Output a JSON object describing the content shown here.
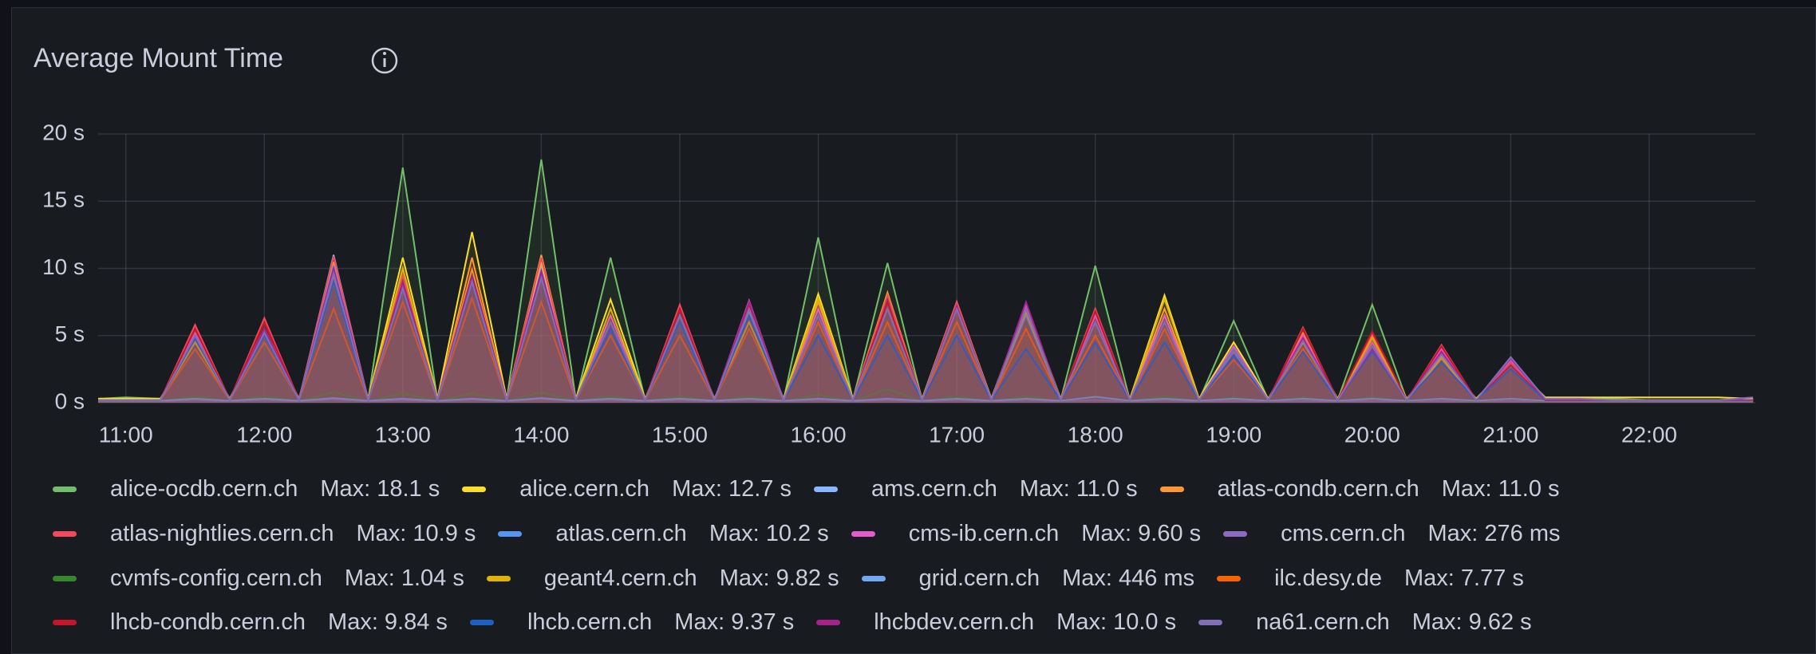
{
  "chart_data": {
    "type": "line",
    "title": "Average Mount Time",
    "x": [
      "10:48",
      "11:00",
      "11:15",
      "11:30",
      "11:45",
      "12:00",
      "12:15",
      "12:30",
      "12:45",
      "13:00",
      "13:15",
      "13:30",
      "13:45",
      "14:00",
      "14:15",
      "14:30",
      "14:45",
      "15:00",
      "15:15",
      "15:30",
      "15:45",
      "16:00",
      "16:15",
      "16:30",
      "16:45",
      "17:00",
      "17:15",
      "17:30",
      "17:45",
      "18:00",
      "18:15",
      "18:30",
      "18:45",
      "19:00",
      "19:15",
      "19:30",
      "19:45",
      "20:00",
      "20:15",
      "20:30",
      "20:45",
      "21:00",
      "21:15",
      "21:30",
      "21:45",
      "22:00",
      "22:15",
      "22:30",
      "22:45"
    ],
    "xlim": [
      "10:48",
      "22:46"
    ],
    "xticks": [
      "11:00",
      "12:00",
      "13:00",
      "14:00",
      "15:00",
      "16:00",
      "17:00",
      "18:00",
      "19:00",
      "20:00",
      "21:00",
      "22:00"
    ],
    "ylim": [
      0,
      20
    ],
    "yticks": [
      {
        "value": 0,
        "label": "0 s"
      },
      {
        "value": 5,
        "label": "5 s"
      },
      {
        "value": 10,
        "label": "10 s"
      },
      {
        "value": 15,
        "label": "15 s"
      },
      {
        "value": 20,
        "label": "20 s"
      }
    ],
    "grid": true,
    "series": [
      {
        "name": "alice-ocdb.cern.ch",
        "legend_value": "Max: 18.1 s",
        "color": "#73bf69",
        "values": [
          0.3,
          0.4,
          0.3,
          4.5,
          0.2,
          5.0,
          0.2,
          9.5,
          0.2,
          17.5,
          0.2,
          9.0,
          0.2,
          18.1,
          0.2,
          10.8,
          0.2,
          6.5,
          0.2,
          6.8,
          0.2,
          12.3,
          0.2,
          10.4,
          0.2,
          7.2,
          0.2,
          6.8,
          0.2,
          10.2,
          0.2,
          6.5,
          0.2,
          6.1,
          0.2,
          4.8,
          0.2,
          7.3,
          0.2,
          3.8,
          0.2,
          3.0,
          0.3,
          0.3,
          0.3,
          0.2,
          0.2,
          0.2,
          0.2
        ]
      },
      {
        "name": "alice.cern.ch",
        "legend_value": "Max: 12.7 s",
        "color": "#fade2a",
        "values": [
          0.3,
          0.3,
          0.3,
          4.8,
          0.3,
          5.5,
          0.3,
          9.8,
          0.3,
          10.8,
          0.3,
          12.7,
          0.3,
          10.5,
          0.3,
          7.7,
          0.3,
          6.5,
          0.3,
          6.5,
          0.3,
          8.1,
          0.3,
          7.5,
          0.3,
          7.5,
          0.3,
          7.3,
          0.3,
          6.5,
          0.3,
          8.0,
          0.3,
          4.5,
          0.3,
          5.0,
          0.3,
          5.0,
          0.3,
          3.5,
          0.3,
          3.0,
          0.4,
          0.4,
          0.4,
          0.4,
          0.4,
          0.4,
          0.3
        ]
      },
      {
        "name": "ams.cern.ch",
        "legend_value": "Max: 11.0 s",
        "color": "#8ab8ff",
        "values": [
          0.2,
          0.2,
          0.2,
          5.0,
          0.2,
          5.5,
          0.2,
          11.0,
          0.2,
          9.0,
          0.2,
          9.5,
          0.2,
          10.0,
          0.2,
          6.0,
          0.2,
          6.5,
          0.2,
          7.0,
          0.2,
          7.0,
          0.2,
          7.5,
          0.2,
          7.0,
          0.2,
          7.0,
          0.2,
          6.0,
          0.2,
          6.5,
          0.2,
          4.0,
          0.2,
          5.0,
          0.2,
          4.5,
          0.2,
          3.8,
          0.2,
          3.0,
          0.2,
          0.2,
          0.2,
          0.2,
          0.2,
          0.2,
          0.2
        ]
      },
      {
        "name": "atlas-condb.cern.ch",
        "legend_value": "Max: 11.0 s",
        "color": "#ff9830",
        "values": [
          0.2,
          0.2,
          0.2,
          5.5,
          0.2,
          6.0,
          0.2,
          10.5,
          0.2,
          10.0,
          0.2,
          10.8,
          0.2,
          11.0,
          0.2,
          6.5,
          0.2,
          7.0,
          0.2,
          7.2,
          0.2,
          7.5,
          0.2,
          8.2,
          0.2,
          7.5,
          0.2,
          7.0,
          0.2,
          6.8,
          0.2,
          7.0,
          0.2,
          4.2,
          0.2,
          5.2,
          0.2,
          5.0,
          0.2,
          4.0,
          0.2,
          3.0,
          0.2,
          0.2,
          0.2,
          0.2,
          0.2,
          0.2,
          0.2
        ]
      },
      {
        "name": "atlas-nightlies.cern.ch",
        "legend_value": "Max: 10.9 s",
        "color": "#f2495c",
        "values": [
          0.2,
          0.2,
          0.2,
          5.8,
          0.2,
          6.3,
          0.2,
          10.9,
          0.2,
          9.5,
          0.2,
          10.0,
          0.2,
          10.8,
          0.2,
          6.5,
          0.2,
          7.3,
          0.2,
          7.5,
          0.2,
          7.0,
          0.2,
          8.0,
          0.2,
          7.5,
          0.2,
          7.4,
          0.2,
          7.0,
          0.2,
          6.5,
          0.2,
          4.0,
          0.2,
          5.6,
          0.2,
          5.2,
          0.2,
          4.3,
          0.2,
          3.0,
          0.2,
          0.2,
          0.2,
          0.2,
          0.2,
          0.2,
          0.2
        ]
      },
      {
        "name": "atlas.cern.ch",
        "legend_value": "Max: 10.2 s",
        "color": "#5794f2",
        "values": [
          0.2,
          0.2,
          0.2,
          5.0,
          0.2,
          5.3,
          0.2,
          10.2,
          0.2,
          9.0,
          0.2,
          9.5,
          0.2,
          9.5,
          0.2,
          6.0,
          0.2,
          6.5,
          0.2,
          7.0,
          0.2,
          6.5,
          0.2,
          7.0,
          0.2,
          7.0,
          0.2,
          6.5,
          0.2,
          6.0,
          0.2,
          6.0,
          0.2,
          3.8,
          0.2,
          5.0,
          0.2,
          4.5,
          0.2,
          3.8,
          0.2,
          2.8,
          0.2,
          0.2,
          0.2,
          0.2,
          0.2,
          0.2,
          0.2
        ]
      },
      {
        "name": "cms-ib.cern.ch",
        "legend_value": "Max: 9.60 s",
        "color": "#e05ccf",
        "values": [
          0.2,
          0.2,
          0.2,
          5.2,
          0.2,
          5.5,
          0.2,
          9.6,
          0.2,
          9.0,
          0.2,
          9.0,
          0.2,
          9.5,
          0.2,
          6.5,
          0.2,
          7.0,
          0.2,
          7.6,
          0.2,
          7.0,
          0.2,
          7.5,
          0.2,
          7.0,
          0.2,
          7.3,
          0.2,
          6.5,
          0.2,
          6.5,
          0.2,
          4.2,
          0.2,
          5.0,
          0.2,
          4.5,
          0.2,
          4.0,
          0.2,
          3.2,
          0.2,
          0.2,
          0.2,
          0.2,
          0.2,
          0.2,
          0.2
        ]
      },
      {
        "name": "cms.cern.ch",
        "legend_value": "Max: 276 ms",
        "color": "#8f6ac4",
        "values": [
          0.1,
          0.1,
          0.1,
          0.2,
          0.1,
          0.2,
          0.1,
          0.25,
          0.1,
          0.2,
          0.1,
          0.22,
          0.1,
          0.276,
          0.1,
          0.2,
          0.1,
          0.2,
          0.1,
          0.2,
          0.1,
          0.2,
          0.1,
          0.2,
          0.1,
          0.2,
          0.1,
          0.2,
          0.1,
          0.2,
          0.1,
          0.2,
          0.1,
          0.15,
          0.1,
          0.15,
          0.1,
          0.15,
          0.1,
          0.15,
          0.1,
          0.15,
          0.1,
          0.1,
          0.1,
          0.1,
          0.1,
          0.1,
          0.1
        ]
      },
      {
        "name": "cvmfs-config.cern.ch",
        "legend_value": "Max: 1.04 s",
        "color": "#37872d",
        "values": [
          0.1,
          0.1,
          0.1,
          0.5,
          0.1,
          0.5,
          0.1,
          0.8,
          0.1,
          0.7,
          0.1,
          0.7,
          0.1,
          0.8,
          0.1,
          0.5,
          0.1,
          0.5,
          0.1,
          0.5,
          0.1,
          0.6,
          0.1,
          1.04,
          0.1,
          0.5,
          0.1,
          0.5,
          0.1,
          0.5,
          0.1,
          0.5,
          0.1,
          0.4,
          0.1,
          0.4,
          0.1,
          0.4,
          0.1,
          0.3,
          0.1,
          0.3,
          0.1,
          0.1,
          0.1,
          0.1,
          0.1,
          0.1,
          0.1
        ]
      },
      {
        "name": "geant4.cern.ch",
        "legend_value": "Max: 9.82 s",
        "color": "#e0b400",
        "values": [
          0.2,
          0.2,
          0.2,
          4.5,
          0.2,
          5.0,
          0.2,
          9.0,
          0.2,
          10.0,
          0.2,
          9.82,
          0.2,
          9.5,
          0.2,
          7.0,
          0.2,
          6.0,
          0.2,
          6.0,
          0.2,
          7.8,
          0.2,
          7.0,
          0.2,
          7.0,
          0.2,
          6.8,
          0.2,
          6.0,
          0.2,
          7.7,
          0.2,
          4.0,
          0.2,
          4.5,
          0.2,
          4.8,
          0.2,
          3.3,
          0.2,
          2.8,
          0.2,
          0.2,
          0.2,
          0.2,
          0.2,
          0.2,
          0.2
        ]
      },
      {
        "name": "grid.cern.ch",
        "legend_value": "Max: 446 ms",
        "color": "#73a7f2",
        "values": [
          0.15,
          0.15,
          0.15,
          0.3,
          0.15,
          0.3,
          0.15,
          0.35,
          0.15,
          0.3,
          0.15,
          0.3,
          0.15,
          0.35,
          0.15,
          0.3,
          0.15,
          0.3,
          0.15,
          0.3,
          0.15,
          0.3,
          0.15,
          0.3,
          0.15,
          0.3,
          0.15,
          0.3,
          0.15,
          0.446,
          0.15,
          0.3,
          0.15,
          0.3,
          0.15,
          0.3,
          0.15,
          0.3,
          0.15,
          0.3,
          0.15,
          0.3,
          0.15,
          0.15,
          0.15,
          0.15,
          0.15,
          0.15,
          0.15
        ]
      },
      {
        "name": "ilc.desy.de",
        "legend_value": "Max: 7.77 s",
        "color": "#fa6400",
        "values": [
          0.2,
          0.2,
          0.2,
          4.0,
          0.2,
          4.5,
          0.2,
          7.0,
          0.2,
          7.5,
          0.2,
          7.77,
          0.2,
          7.5,
          0.2,
          5.0,
          0.2,
          5.0,
          0.2,
          5.5,
          0.2,
          6.0,
          0.2,
          6.0,
          0.2,
          6.0,
          0.2,
          5.5,
          0.2,
          5.0,
          0.2,
          5.5,
          0.2,
          3.2,
          0.2,
          4.0,
          0.2,
          3.8,
          0.2,
          3.0,
          0.2,
          2.5,
          0.2,
          0.2,
          0.2,
          0.2,
          0.2,
          0.2,
          0.2
        ]
      },
      {
        "name": "lhcb-condb.cern.ch",
        "legend_value": "Max: 9.84 s",
        "color": "#c4162a",
        "values": [
          0.2,
          0.2,
          0.2,
          5.5,
          0.2,
          6.0,
          0.2,
          9.84,
          0.2,
          9.0,
          0.2,
          9.5,
          0.2,
          9.5,
          0.2,
          6.0,
          0.2,
          7.0,
          0.2,
          7.2,
          0.2,
          6.5,
          0.2,
          7.5,
          0.2,
          7.0,
          0.2,
          7.0,
          0.2,
          6.8,
          0.2,
          6.0,
          0.2,
          4.0,
          0.2,
          5.5,
          0.2,
          5.3,
          0.2,
          4.2,
          0.2,
          2.8,
          0.2,
          0.2,
          0.2,
          0.2,
          0.2,
          0.2,
          0.2
        ]
      },
      {
        "name": "lhcb.cern.ch",
        "legend_value": "Max: 9.37 s",
        "color": "#1f60c4",
        "values": [
          0.2,
          0.2,
          0.2,
          4.8,
          0.2,
          5.0,
          0.2,
          9.0,
          0.2,
          8.5,
          0.2,
          9.0,
          0.2,
          9.37,
          0.2,
          5.5,
          0.2,
          6.0,
          0.2,
          6.5,
          0.2,
          5.0,
          0.2,
          5.0,
          0.2,
          5.0,
          0.2,
          4.0,
          0.2,
          4.5,
          0.2,
          4.5,
          0.2,
          3.5,
          0.2,
          3.8,
          0.2,
          3.8,
          0.2,
          3.0,
          0.2,
          2.5,
          0.2,
          0.2,
          0.2,
          0.2,
          0.2,
          0.2,
          0.2
        ]
      },
      {
        "name": "lhcbdev.cern.ch",
        "legend_value": "Max: 10.0 s",
        "color": "#a3238c",
        "values": [
          0.2,
          0.2,
          0.2,
          5.0,
          0.2,
          5.5,
          0.2,
          10.0,
          0.2,
          9.0,
          0.2,
          9.5,
          0.2,
          9.8,
          0.2,
          6.0,
          0.2,
          6.5,
          0.2,
          7.5,
          0.2,
          6.5,
          0.2,
          7.0,
          0.2,
          7.2,
          0.2,
          7.5,
          0.2,
          6.0,
          0.2,
          6.0,
          0.2,
          4.0,
          0.2,
          4.8,
          0.2,
          4.0,
          0.2,
          3.8,
          0.2,
          3.3,
          0.2,
          0.2,
          0.2,
          0.2,
          0.2,
          0.2,
          0.2
        ]
      },
      {
        "name": "na61.cern.ch",
        "legend_value": "Max: 9.62 s",
        "color": "#806eb7",
        "values": [
          0.2,
          0.2,
          0.2,
          5.0,
          0.2,
          5.2,
          0.2,
          9.62,
          0.2,
          8.5,
          0.2,
          9.0,
          0.2,
          9.3,
          0.2,
          6.0,
          0.2,
          6.5,
          0.2,
          7.0,
          0.2,
          6.5,
          0.2,
          7.0,
          0.2,
          7.0,
          0.2,
          7.0,
          0.2,
          6.0,
          0.2,
          6.0,
          0.2,
          4.0,
          0.2,
          4.6,
          0.2,
          4.2,
          0.2,
          3.6,
          0.2,
          3.4,
          0.3,
          0.3,
          0.2,
          0.2,
          0.2,
          0.2,
          0.4
        ]
      }
    ]
  }
}
